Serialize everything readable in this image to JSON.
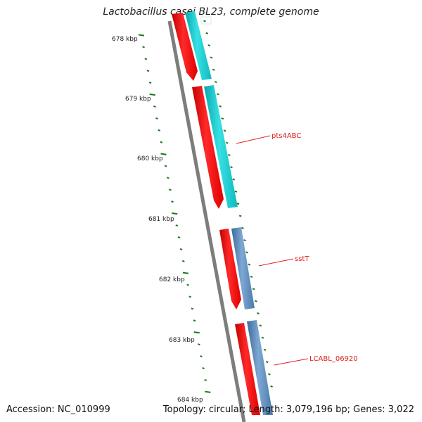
{
  "title": "Lactobacillus casei BL23, complete genome",
  "footer": {
    "accession": "Accession: NC_010999",
    "summary": "Topology: circular; Length: 3,079,196 bp; Genes: 3,022"
  },
  "scale_labels": [
    "678 kbp",
    "679 kbp",
    "680 kbp",
    "681 kbp",
    "682 kbp",
    "683 kbp",
    "684 kbp"
  ],
  "gene_labels": [
    "pts4ABC",
    "sstT",
    "LCABL_06920"
  ],
  "colors": {
    "backbone": "#7d7d7d",
    "tick": "#1a7a1a",
    "cds": "#ff1a1a",
    "gene_cyan": "#19c8cc",
    "gene_steel": "#5b87b8",
    "label": "#e0201c"
  }
}
